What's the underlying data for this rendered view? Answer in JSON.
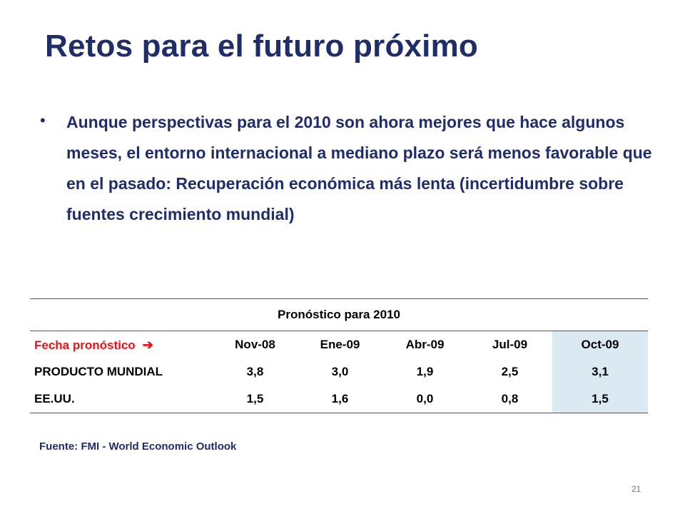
{
  "slide": {
    "title": "Retos para el futuro próximo",
    "bullet": "Aunque perspectivas para el 2010 son ahora mejores que hace algunos meses, el entorno internacional a mediano plazo será menos favorable que en el pasado:  Recuperación económica más lenta (incertidumbre sobre fuentes crecimiento mundial)",
    "page_number": "21"
  },
  "table": {
    "caption": "Pronóstico para 2010",
    "row_header_label": "Fecha pronóstico",
    "arrow_icon": "right-arrow-icon",
    "dates": [
      "Nov-08",
      "Ene-09",
      "Abr-09",
      "Jul-09",
      "Oct-09"
    ],
    "rows": [
      {
        "label": "PRODUCTO MUNDIAL",
        "values": [
          "3,8",
          "3,0",
          "1,9",
          "2,5",
          "3,1"
        ]
      },
      {
        "label": "EE.UU.",
        "values": [
          "1,5",
          "1,6",
          "0,0",
          "0,8",
          "1,5"
        ]
      }
    ],
    "highlight_color": "#dbeaf2",
    "label_color": "#e0161b"
  },
  "source": "Fuente:  FMI - World Economic Outlook",
  "colors": {
    "title": "#1f2d6b"
  }
}
